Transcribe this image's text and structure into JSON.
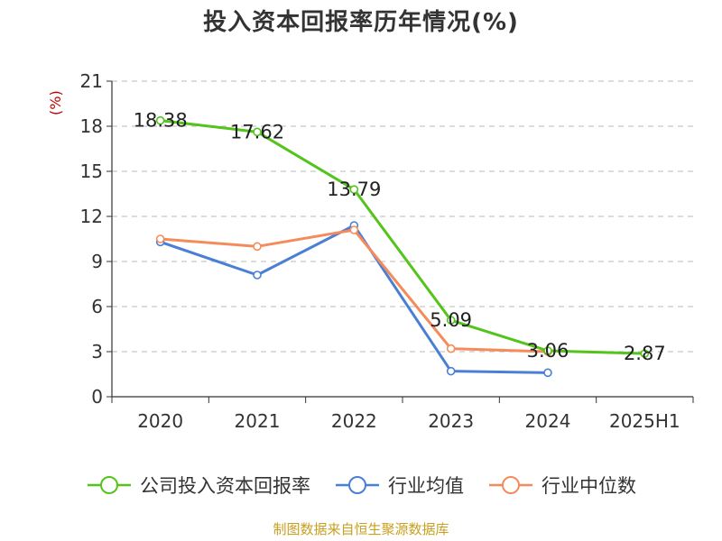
{
  "title": "投入资本回报率历年情况(%)",
  "unit_label": "(%)",
  "source": "制图数据来自恒生聚源数据库",
  "chart_data": {
    "type": "line",
    "title": "投入资本回报率历年情况(%)",
    "ylabel": "(%)",
    "xlabel": "",
    "categories": [
      "2020",
      "2021",
      "2022",
      "2023",
      "2024",
      "2025H1"
    ],
    "ylim": [
      0,
      21
    ],
    "yticks": [
      0,
      3,
      6,
      9,
      12,
      15,
      18,
      21
    ],
    "grid": "horizontal dashed",
    "legend_position": "bottom",
    "series": [
      {
        "name": "公司投入资本回报率",
        "color": "#52c41a",
        "values": [
          18.38,
          17.62,
          13.79,
          5.09,
          3.06,
          2.87
        ],
        "labels": [
          "18.38",
          "17.62",
          "13.79",
          "5.09",
          "3.06",
          "2.87"
        ]
      },
      {
        "name": "行业均值",
        "color": "#4a7fd6",
        "values": [
          10.3,
          8.1,
          11.4,
          1.7,
          1.6,
          null
        ]
      },
      {
        "name": "行业中位数",
        "color": "#f58b5a",
        "values": [
          10.5,
          10.0,
          11.1,
          3.2,
          3.0,
          null
        ]
      }
    ]
  }
}
